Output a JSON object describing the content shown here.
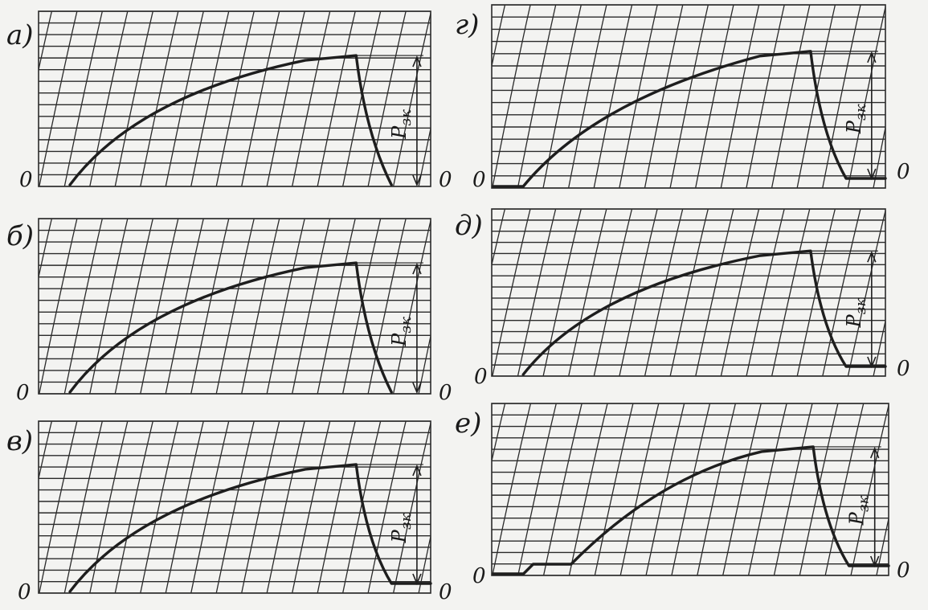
{
  "panels": [
    {
      "id": "a",
      "label": "а)",
      "zero_left": "0",
      "zero_right": "0",
      "force_label": "P",
      "force_subscript": "зк",
      "leading_flat": false,
      "trailing_flat": false
    },
    {
      "id": "b",
      "label": "б)",
      "zero_left": "0",
      "zero_right": "0",
      "force_label": "P",
      "force_subscript": "зк",
      "leading_flat": false,
      "trailing_flat": false
    },
    {
      "id": "v",
      "label": "в)",
      "zero_left": "0",
      "zero_right": "0",
      "force_label": "P",
      "force_subscript": "зк",
      "leading_flat": false,
      "trailing_flat": true
    },
    {
      "id": "g",
      "label": "г)",
      "zero_left": "0",
      "zero_right": "0",
      "force_label": "P",
      "force_subscript": "зк",
      "leading_flat": true,
      "trailing_flat": true
    },
    {
      "id": "d",
      "label": "д)",
      "zero_left": "0",
      "zero_right": "0",
      "force_label": "P",
      "force_subscript": "зк",
      "leading_flat": false,
      "trailing_flat": true
    },
    {
      "id": "e",
      "label": "е)",
      "zero_left": "0",
      "zero_right": "0",
      "force_label": "P",
      "force_subscript": "зк",
      "leading_flat": true,
      "trailing_flat": true,
      "step": true
    }
  ],
  "colors": {
    "ink": "#1e1e1e",
    "grid": "#2a2a2a",
    "paper": "#f3f3f1"
  }
}
